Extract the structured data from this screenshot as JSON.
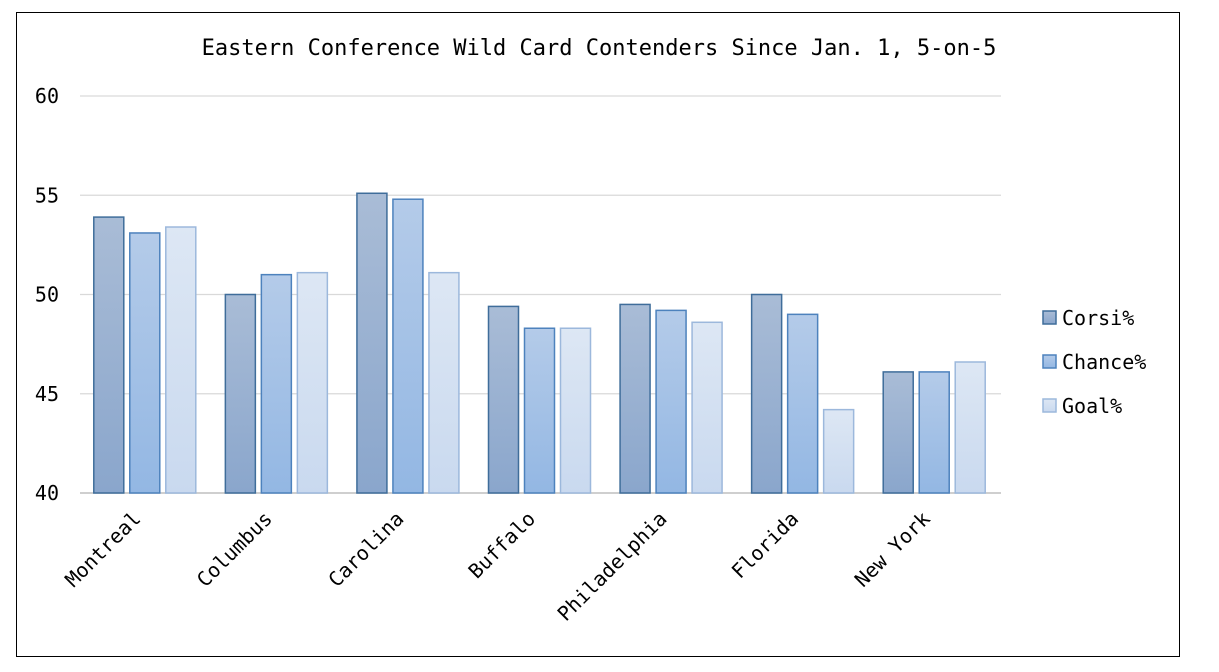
{
  "chart_data": {
    "type": "bar",
    "title": "Eastern Conference Wild Card Contenders Since Jan. 1, 5-on-5",
    "xlabel": "",
    "ylabel": "",
    "ylim": [
      40,
      60
    ],
    "yticks": [
      40,
      45,
      50,
      55,
      60
    ],
    "grid": true,
    "legend_position": "right",
    "categories": [
      "Montreal",
      "Columbus",
      "Carolina",
      "Buffalo",
      "Philadelphia",
      "Florida",
      "New York"
    ],
    "series": [
      {
        "name": "Corsi%",
        "values": [
          53.9,
          50.0,
          55.1,
          49.4,
          49.5,
          50.0,
          46.1
        ]
      },
      {
        "name": "Chance%",
        "values": [
          53.1,
          51.0,
          54.8,
          48.3,
          49.2,
          49.0,
          46.1
        ]
      },
      {
        "name": "Goal%",
        "values": [
          53.4,
          51.1,
          51.1,
          48.3,
          48.6,
          44.2,
          46.6
        ]
      }
    ],
    "colors": {
      "Corsi%": {
        "top": "#a9bcd6",
        "bottom": "#8aa6cc",
        "stroke": "#3f6d9a"
      },
      "Chance%": {
        "top": "#b4cbe9",
        "bottom": "#93b7e3",
        "stroke": "#4d82bd"
      },
      "Goal%": {
        "top": "#dde7f4",
        "bottom": "#c9d9ef",
        "stroke": "#9cb8dc"
      }
    }
  }
}
